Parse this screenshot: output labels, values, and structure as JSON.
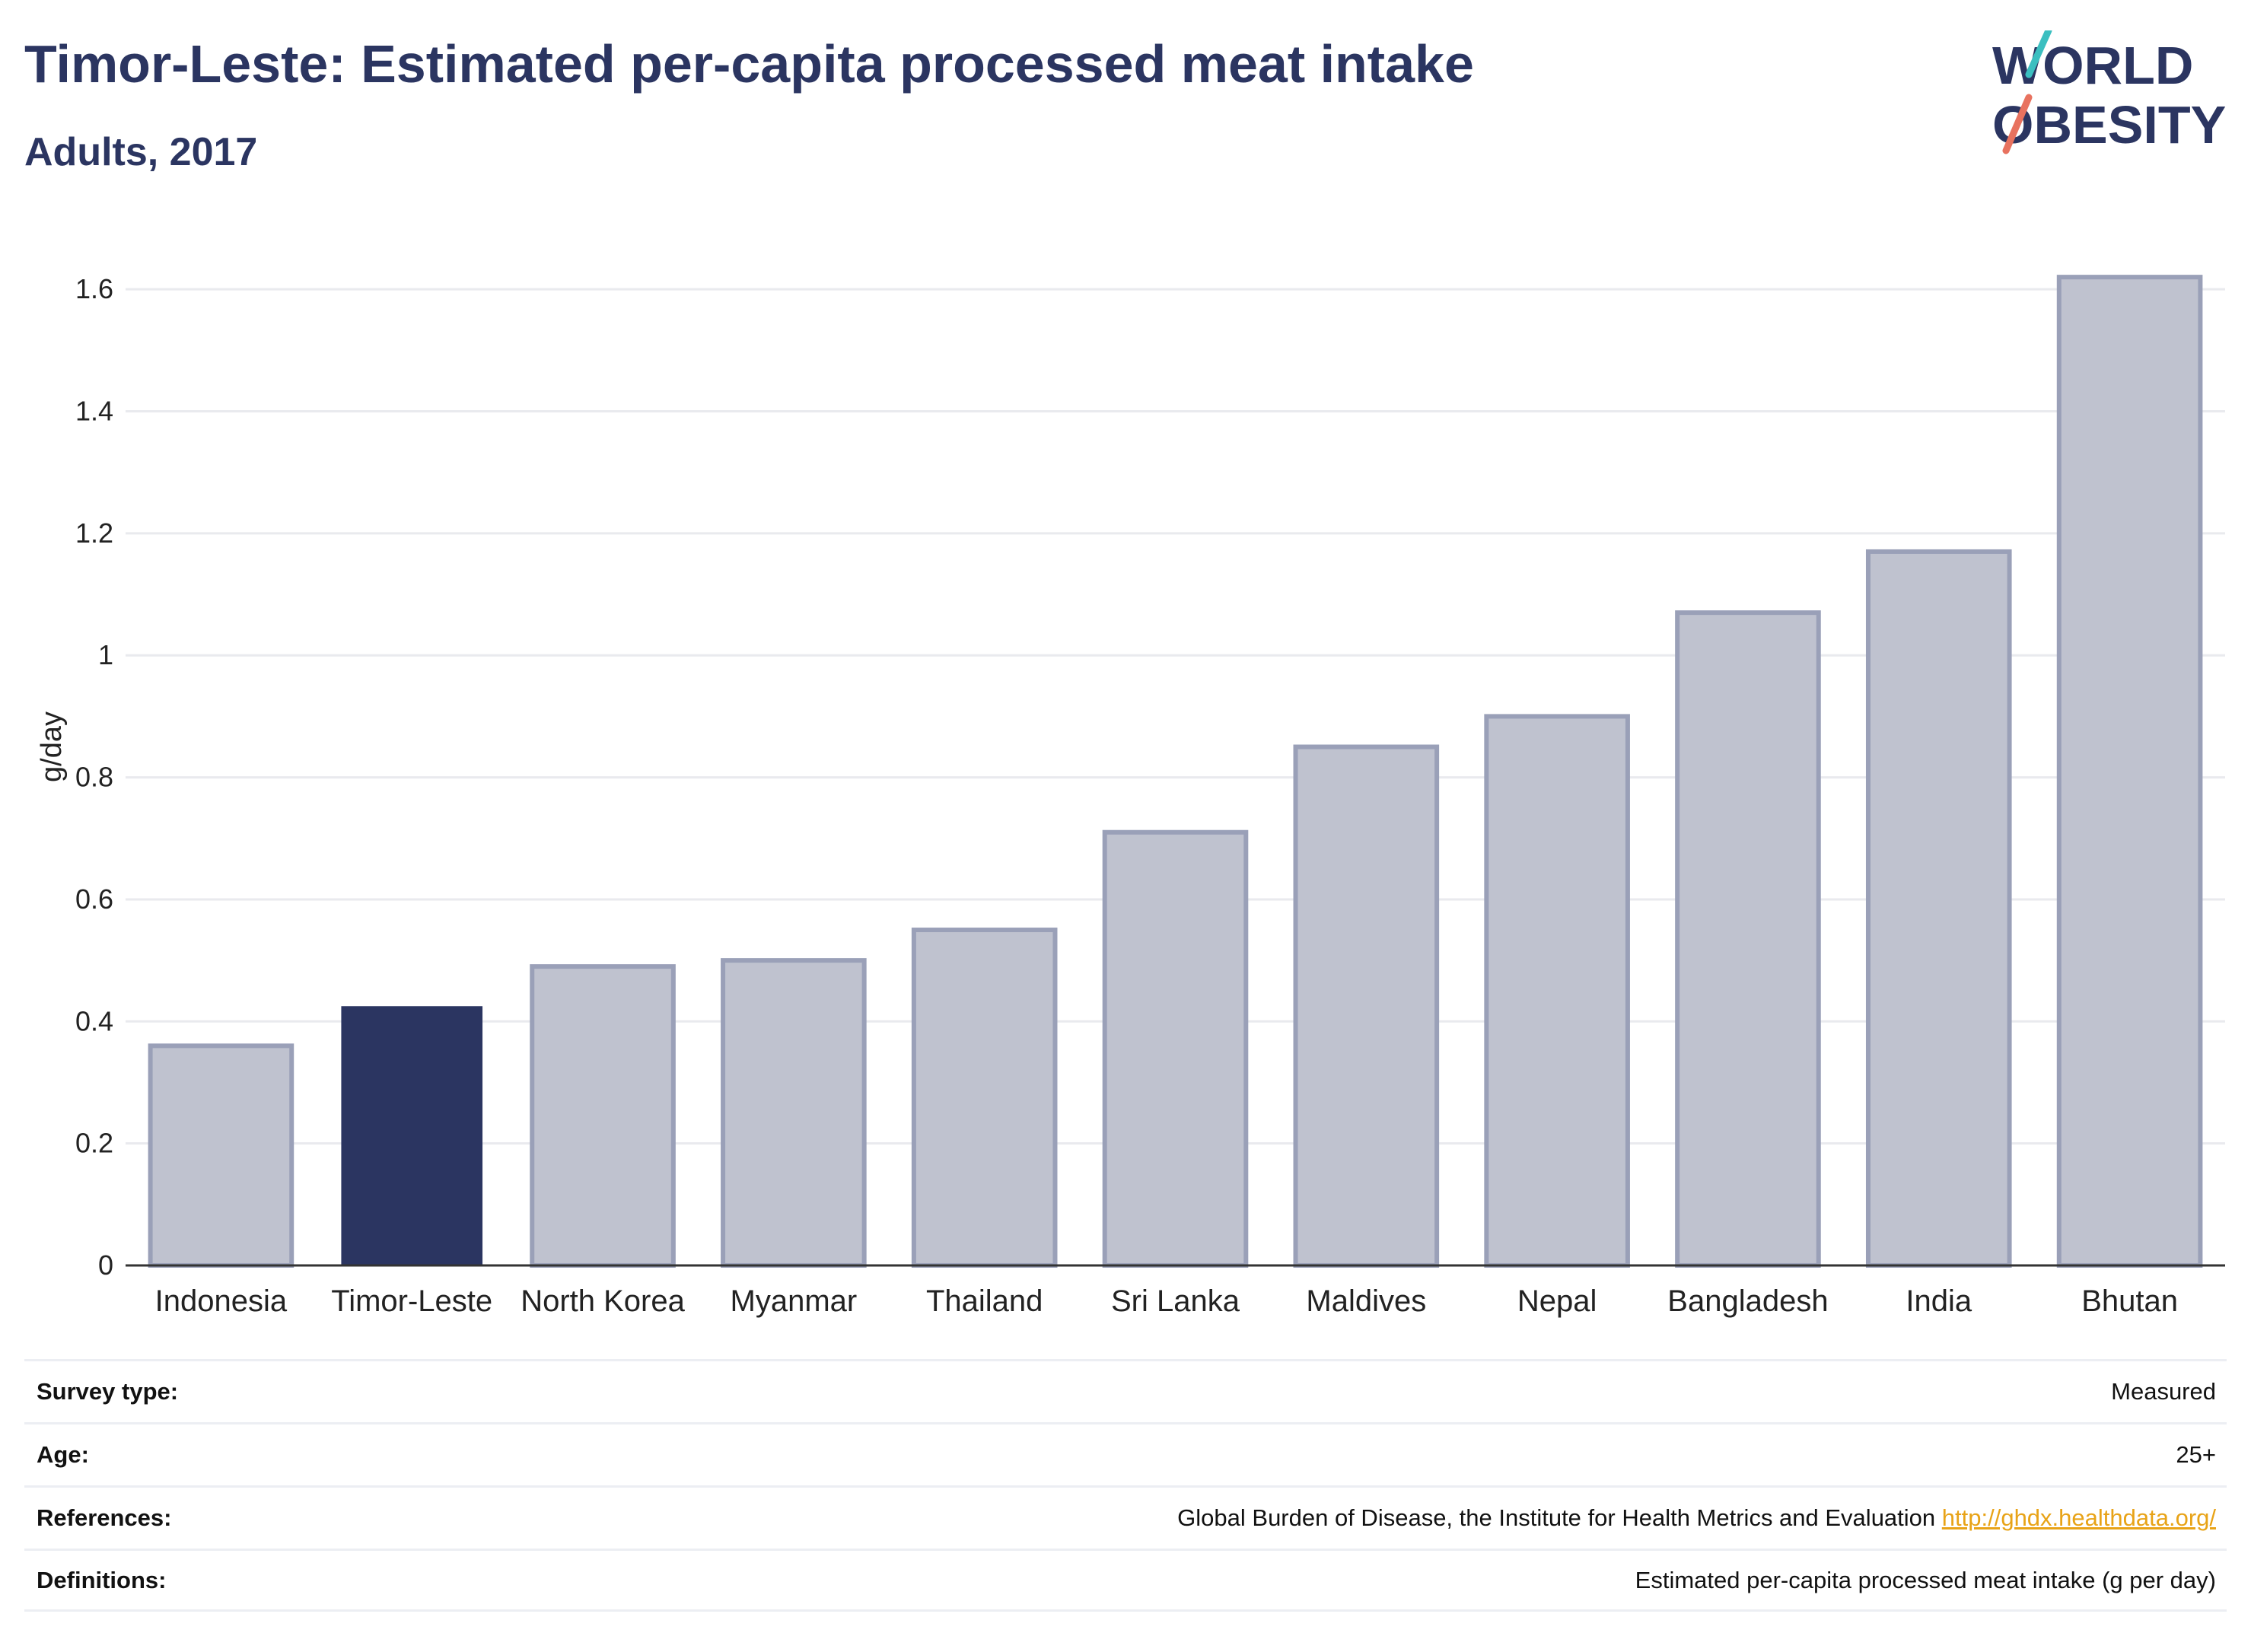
{
  "title": "Timor-Leste: Estimated per-capita processed meat intake",
  "subtitle": "Adults, 2017",
  "logo": {
    "line1": "WORLD",
    "line2": "OBESITY",
    "colors": {
      "text": "#2b3561",
      "slash_top": "#3bbfc0",
      "slash_bottom": "#e8725f"
    }
  },
  "colors": {
    "highlight": "#2b3561",
    "bar_fill": "#bfc2cf",
    "bar_stroke": "#9aa0b8",
    "grid": "#e9eaee",
    "axis": "#333333"
  },
  "chart_data": {
    "type": "bar",
    "categories": [
      "Indonesia",
      "Timor-Leste",
      "North Korea",
      "Myanmar",
      "Thailand",
      "Sri Lanka",
      "Maldives",
      "Nepal",
      "Bangladesh",
      "India",
      "Bhutan"
    ],
    "values": [
      0.36,
      0.425,
      0.49,
      0.5,
      0.55,
      0.71,
      0.85,
      0.9,
      1.07,
      1.17,
      1.62
    ],
    "highlight": "Timor-Leste",
    "ylabel": "g/day",
    "xlabel": "",
    "ylim": [
      0,
      1.7
    ],
    "yticks": [
      0,
      0.2,
      0.4,
      0.6,
      0.8,
      1,
      1.2,
      1.4,
      1.6
    ],
    "ytick_labels": [
      "0",
      "0.2",
      "0.4",
      "0.6",
      "0.8",
      "1",
      "1.2",
      "1.4",
      "1.6"
    ],
    "grid": true
  },
  "info": [
    {
      "label": "Survey type:",
      "value": "Measured"
    },
    {
      "label": "Age:",
      "value": "25+"
    },
    {
      "label": "References:",
      "value": "Global Burden of Disease, the Institute for Health Metrics and Evaluation",
      "link": "http://ghdx.healthdata.org/"
    },
    {
      "label": "Definitions:",
      "value": "Estimated per-capita processed meat intake (g per day)"
    }
  ]
}
